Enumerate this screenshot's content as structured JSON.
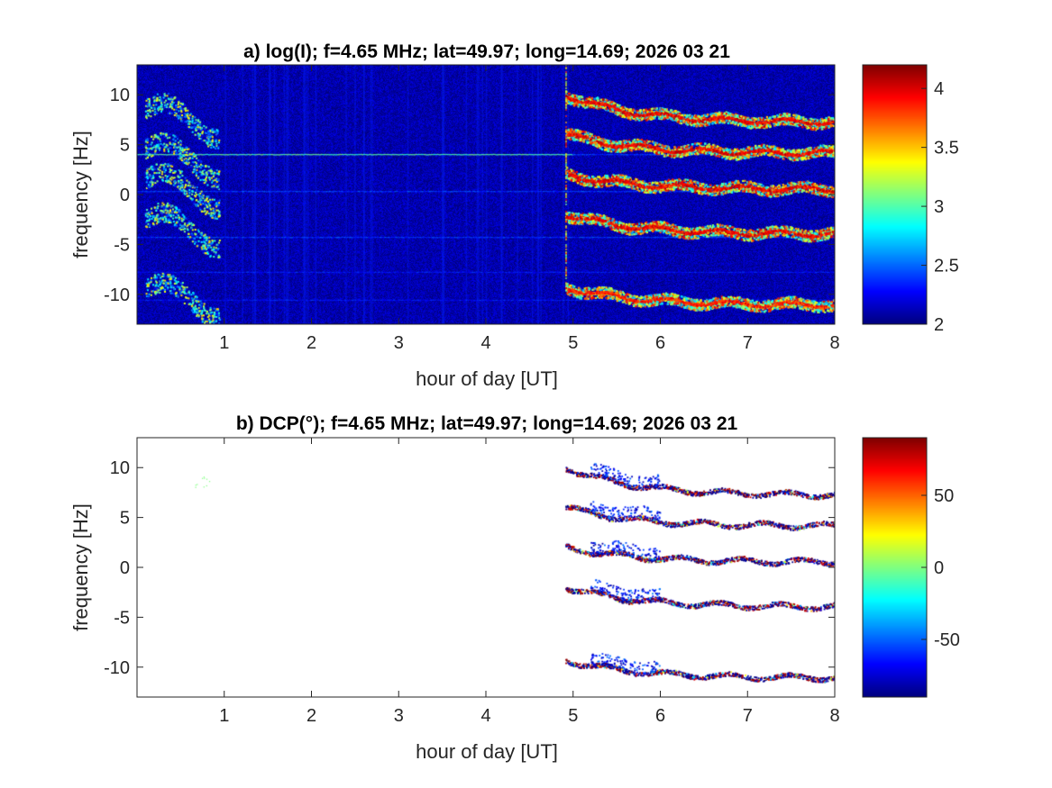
{
  "chart_data": [
    {
      "type": "heatmap",
      "panel": "a",
      "title": "a) log(I); f=4.65 MHz;  lat=49.97; long=14.69; 2026 03 21",
      "xlabel": "hour of day [UT]",
      "ylabel": "frequency [Hz]",
      "xlim": [
        0,
        8
      ],
      "ylim": [
        -13,
        13
      ],
      "xticks": [
        1,
        2,
        3,
        4,
        5,
        6,
        7,
        8
      ],
      "yticks": [
        -10,
        -5,
        0,
        5,
        10
      ],
      "colorbar": {
        "range": [
          2,
          4.2
        ],
        "ticks": [
          2,
          2.5,
          3,
          3.5,
          4
        ],
        "colormap": "jet"
      },
      "background_value": 2.1,
      "features": [
        {
          "kind": "constant_line",
          "freq": 4.0,
          "x": [
            0,
            5.0
          ],
          "value": 3.0
        },
        {
          "kind": "constant_line",
          "freq": 4.0,
          "x": [
            5.0,
            8
          ],
          "value": 2.4
        },
        {
          "kind": "constant_line",
          "freq": 0.3,
          "x": [
            0,
            8
          ],
          "value": 2.4
        },
        {
          "kind": "constant_line",
          "freq": -4.3,
          "x": [
            0,
            8
          ],
          "value": 2.4
        },
        {
          "kind": "constant_line",
          "freq": -7.8,
          "x": [
            0,
            8
          ],
          "value": 2.3
        },
        {
          "kind": "constant_line",
          "freq": -10.6,
          "x": [
            0,
            8
          ],
          "value": 2.3
        },
        {
          "kind": "burst",
          "x": [
            0.1,
            0.95
          ],
          "freqs": [
            8.5,
            4.5,
            1.5,
            -2.5,
            -9.5
          ],
          "value": 3.5
        },
        {
          "kind": "trace",
          "x": [
            4.92,
            8
          ],
          "f_start": 10.0,
          "f_end": 7.2,
          "value": 4.1
        },
        {
          "kind": "trace",
          "x": [
            4.92,
            8
          ],
          "f_start": 6.0,
          "f_end": 4.1,
          "value": 4.1
        },
        {
          "kind": "trace",
          "x": [
            4.92,
            8
          ],
          "f_start": 2.0,
          "f_end": 0.5,
          "value": 4.1
        },
        {
          "kind": "trace",
          "x": [
            4.92,
            8
          ],
          "f_start": -2.0,
          "f_end": -4.0,
          "value": 4.1
        },
        {
          "kind": "trace",
          "x": [
            4.92,
            8
          ],
          "f_start": -9.3,
          "f_end": -11.1,
          "value": 4.0
        }
      ]
    },
    {
      "type": "heatmap",
      "panel": "b",
      "title": "b) DCP(°); f=4.65 MHz;  lat=49.97; long=14.69; 2026 03 21",
      "xlabel": "hour of day [UT]",
      "ylabel": "frequency [Hz]",
      "xlim": [
        0,
        8
      ],
      "ylim": [
        -13,
        13
      ],
      "xticks": [
        1,
        2,
        3,
        4,
        5,
        6,
        7,
        8
      ],
      "yticks": [
        -10,
        -5,
        0,
        5,
        10
      ],
      "colorbar": {
        "range": [
          -90,
          90
        ],
        "ticks": [
          -50,
          0,
          50
        ],
        "colormap": "jet"
      },
      "features": [
        {
          "kind": "trace",
          "x": [
            4.92,
            8
          ],
          "f_start": 10.0,
          "f_end": 7.2
        },
        {
          "kind": "trace",
          "x": [
            4.92,
            8
          ],
          "f_start": 6.0,
          "f_end": 4.1
        },
        {
          "kind": "trace",
          "x": [
            4.92,
            8
          ],
          "f_start": 2.0,
          "f_end": 0.5
        },
        {
          "kind": "trace",
          "x": [
            4.92,
            8
          ],
          "f_start": -2.0,
          "f_end": -4.0
        },
        {
          "kind": "trace",
          "x": [
            4.92,
            8
          ],
          "f_start": -9.3,
          "f_end": -11.1
        }
      ]
    }
  ]
}
